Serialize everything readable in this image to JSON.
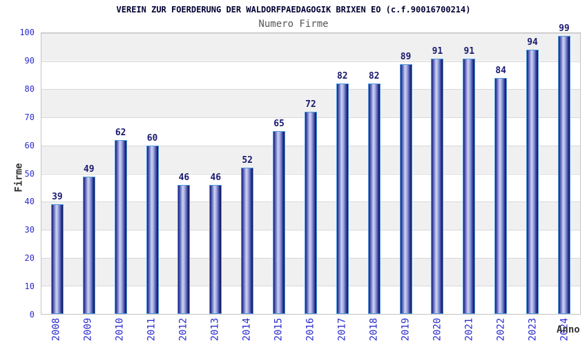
{
  "header": {
    "title": "VEREIN ZUR FOERDERUNG DER WALDORFPAEDAGOGIK BRIXEN EO (c.f.90016700214)",
    "subtitle": "Numero Firme"
  },
  "chart_data": {
    "type": "bar",
    "title": "VEREIN ZUR FOERDERUNG DER WALDORFPAEDAGOGIK BRIXEN EO (c.f.90016700214)",
    "subtitle": "Numero Firme",
    "categories": [
      "2008",
      "2009",
      "2010",
      "2011",
      "2012",
      "2013",
      "2014",
      "2015",
      "2016",
      "2017",
      "2018",
      "2019",
      "2020",
      "2021",
      "2022",
      "2023",
      "2024"
    ],
    "values": [
      39,
      49,
      62,
      60,
      46,
      46,
      52,
      65,
      72,
      82,
      82,
      89,
      91,
      91,
      84,
      94,
      99
    ],
    "xlabel": "Anno",
    "ylabel": "Firme",
    "ylim": [
      0,
      100
    ],
    "y_ticks": [
      0,
      10,
      20,
      30,
      40,
      50,
      60,
      70,
      80,
      90,
      100
    ],
    "grid": true,
    "legend": "none",
    "band_colors": [
      "#f0f0f0",
      "#ffffff"
    ],
    "colors": {
      "bar_dark": "#1b1b72",
      "bar_light": "#cdd2f0",
      "bar_border": "#4f9bdd",
      "value_label": "#191970",
      "tick_label": "#2a2ad0",
      "axis_title": "#333333",
      "title": "#000033",
      "subtitle": "#555555",
      "gridline": "#d8d8d8"
    }
  }
}
